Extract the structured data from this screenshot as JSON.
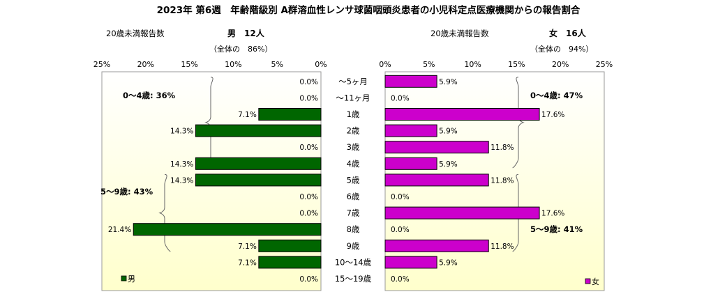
{
  "title": "2023年 第6週　年齢階級別 A群溶血性レンサ球菌咽頭炎患者の小児科定点医療機関からの報告割合",
  "left_panel": {
    "subtitle_label": "20歳未満報告数",
    "sex_count": "男　12人",
    "overall_share": "（全体の　86%）",
    "legend": "男",
    "bracket_0_4": "0～4歳: 36%",
    "bracket_5_9": "5～9歳: 43%"
  },
  "right_panel": {
    "subtitle_label": "20歳未満報告数",
    "sex_count": "女　16人",
    "overall_share": "（全体の　94%）",
    "legend": "女",
    "bracket_0_4": "0～4歳: 47%",
    "bracket_5_9": "5～9歳: 41%"
  },
  "chart_data": {
    "type": "bar",
    "orientation": "horizontal-butterfly",
    "categories": [
      "～5ヶ月",
      "～11ヶ月",
      "1歳",
      "2歳",
      "3歳",
      "4歳",
      "5歳",
      "6歳",
      "7歳",
      "8歳",
      "9歳",
      "10～14歳",
      "15～19歳"
    ],
    "series": [
      {
        "name": "男",
        "values": [
          0.0,
          0.0,
          7.1,
          14.3,
          0.0,
          14.3,
          14.3,
          0.0,
          0.0,
          21.4,
          7.1,
          7.1,
          0.0
        ]
      },
      {
        "name": "女",
        "values": [
          5.9,
          0.0,
          17.6,
          5.9,
          11.8,
          5.9,
          11.8,
          0.0,
          17.6,
          0.0,
          11.8,
          5.9,
          0.0
        ]
      }
    ],
    "value_labels": {
      "male": [
        "0.0%",
        "0.0%",
        "7.1%",
        "14.3%",
        "0.0%",
        "14.3%",
        "14.3%",
        "0.0%",
        "0.0%",
        "21.4%",
        "7.1%",
        "7.1%",
        "0.0%"
      ],
      "female": [
        "5.9%",
        "0.0%",
        "17.6%",
        "5.9%",
        "11.8%",
        "5.9%",
        "11.8%",
        "0.0%",
        "17.6%",
        "0.0%",
        "11.8%",
        "5.9%",
        "0.0%"
      ]
    },
    "xlim": [
      0,
      25
    ],
    "ticks": [
      0,
      5,
      10,
      15,
      20,
      25
    ],
    "tick_labels_left": [
      "0%",
      "5%",
      "10%",
      "15%",
      "20%",
      "25%"
    ],
    "tick_labels_right": [
      "0%",
      "5%",
      "10%",
      "15%",
      "20%",
      "25%"
    ],
    "colors": {
      "male": "#006600",
      "female": "#cc00cc",
      "plot_bg_top": "#ffffff",
      "plot_bg_bottom": "#ffffcc"
    },
    "grid": false
  }
}
